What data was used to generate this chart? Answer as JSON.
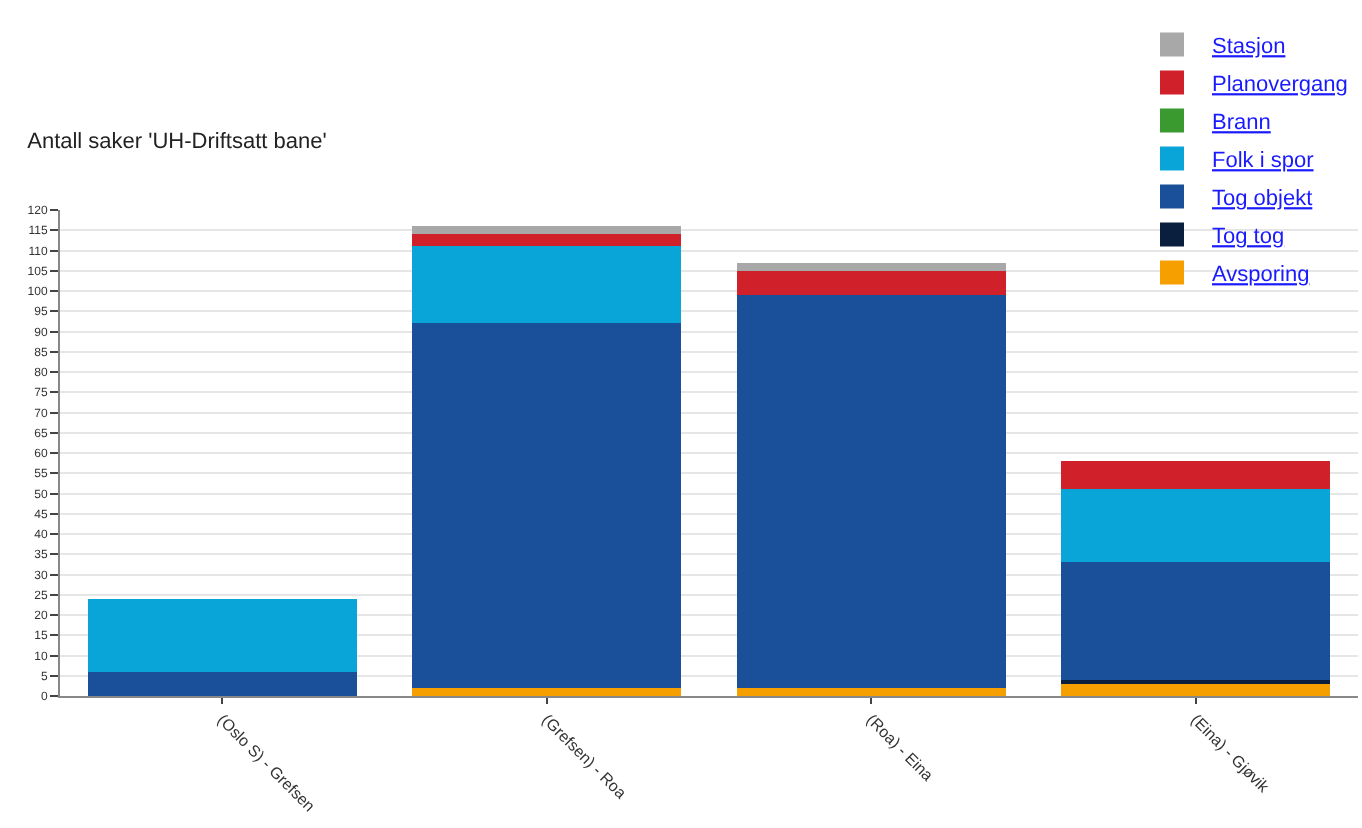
{
  "chart_data": {
    "type": "bar",
    "title": "Antall saker 'UH-Driftsatt bane'",
    "categories": [
      "(Oslo S) - Grefsen",
      "(Grefsen) - Roa",
      "(Roa) - Eina",
      "(Eina) - Gjøvik"
    ],
    "stacked": true,
    "series": [
      {
        "name": "Avsporing",
        "color": "#f5a000",
        "values": [
          0,
          2,
          2,
          3
        ]
      },
      {
        "name": "Tog tog",
        "color": "#0a1f3d",
        "values": [
          0,
          0,
          0,
          1
        ]
      },
      {
        "name": "Tog objekt",
        "color": "#1a4f9a",
        "values": [
          6,
          90,
          97,
          29
        ]
      },
      {
        "name": "Folk i spor",
        "color": "#0aa5d8",
        "values": [
          18,
          19,
          0,
          18
        ]
      },
      {
        "name": "Brann",
        "color": "#3a9a30",
        "values": [
          0,
          0,
          0,
          0
        ]
      },
      {
        "name": "Planovergang",
        "color": "#d0202a",
        "values": [
          0,
          3,
          6,
          7
        ]
      },
      {
        "name": "Stasjon",
        "color": "#a8a8a8",
        "values": [
          0,
          2,
          2,
          0
        ]
      }
    ],
    "ylim": [
      0,
      120
    ],
    "yticks": [
      0,
      5,
      10,
      15,
      20,
      25,
      30,
      35,
      40,
      45,
      50,
      55,
      60,
      65,
      70,
      75,
      80,
      85,
      90,
      95,
      100,
      105,
      110,
      115,
      120
    ],
    "grid": "y",
    "legend": "top right"
  }
}
